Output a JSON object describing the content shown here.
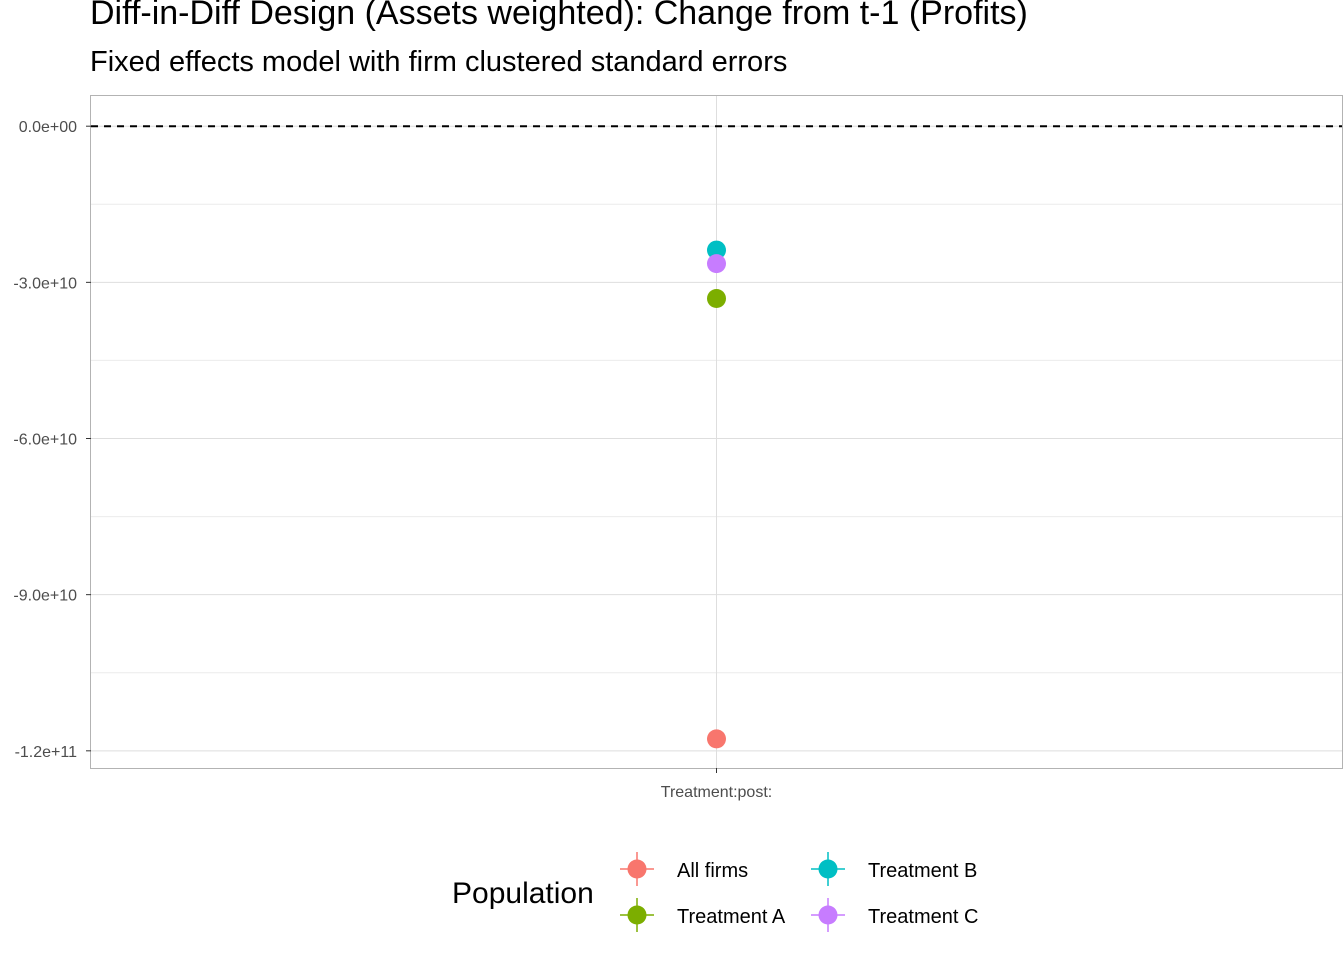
{
  "title": "Diff-in-Diff Design (Assets weighted): Change from t-1 (Profits)",
  "subtitle": "Fixed effects model with firm clustered standard errors",
  "chart_data": {
    "type": "scatter",
    "title": "Diff-in-Diff Design (Assets weighted): Change from t-1 (Profits)",
    "subtitle": "Fixed effects model with firm clustered standard errors",
    "xlabel": "",
    "ylabel": "",
    "categories": [
      "Treatment:post:"
    ],
    "y_ticks": [
      0,
      -30000000000,
      -60000000000,
      -90000000000,
      -120000000000
    ],
    "y_tick_labels": [
      "0.0e+00",
      "-3.0e+10",
      "-6.0e+10",
      "-9.0e+10",
      "-1.2e+11"
    ],
    "ylim": [
      -123300000000,
      5800000000
    ],
    "reference_line": {
      "y": 0,
      "style": "dashed"
    },
    "grid": true,
    "legend": {
      "title": "Population",
      "position": "bottom"
    },
    "series": [
      {
        "name": "All firms",
        "color": "#F8766D",
        "values": [
          -117700000000
        ]
      },
      {
        "name": "Treatment A",
        "color": "#7CAE00",
        "values": [
          -33100000000
        ]
      },
      {
        "name": "Treatment B",
        "color": "#00BFC4",
        "values": [
          -23800000000
        ]
      },
      {
        "name": "Treatment C",
        "color": "#C77CFF",
        "values": [
          -26400000000
        ]
      }
    ]
  }
}
